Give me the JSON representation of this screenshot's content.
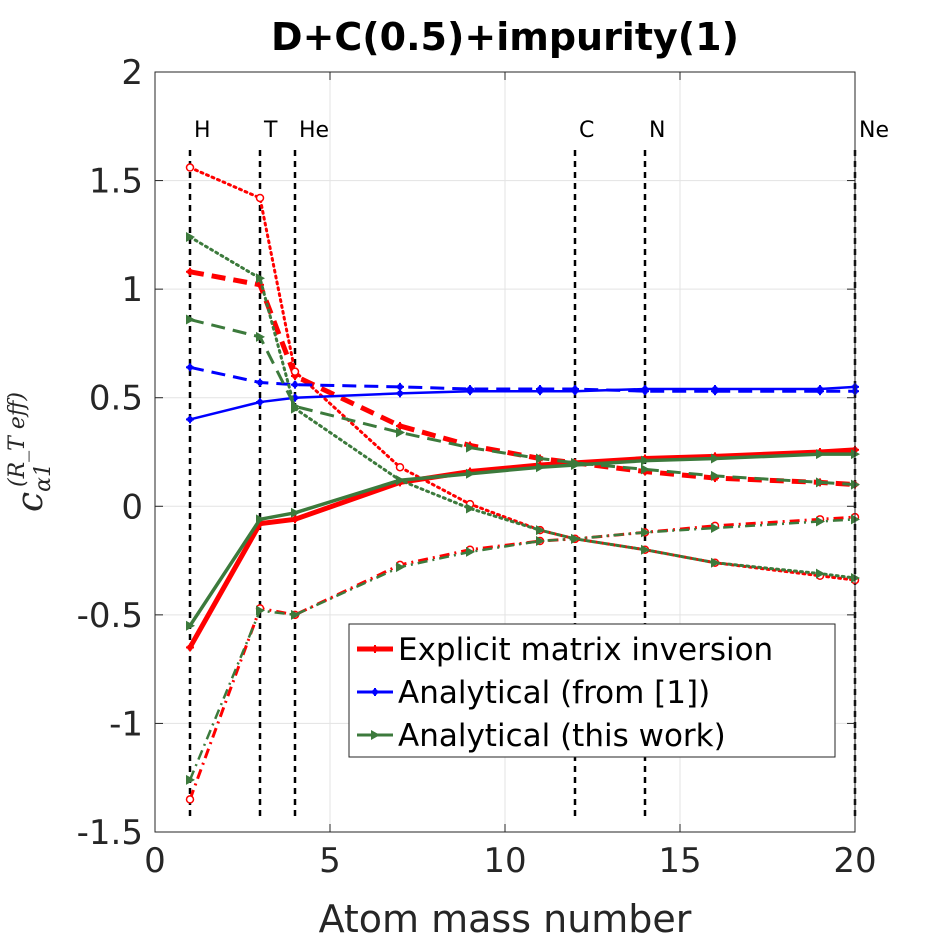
{
  "chart_data": {
    "type": "line",
    "title": "D+C(0.5)+impurity(1)",
    "xlabel": "Atom mass number",
    "ylabel": {
      "base": "c",
      "sub": "α1",
      "sup": "(R_T eff)"
    },
    "xlim": [
      0,
      20
    ],
    "ylim": [
      -1.5,
      2
    ],
    "xticks": [
      0,
      5,
      10,
      15,
      20
    ],
    "xtick_labels": [
      "0",
      "5",
      "10",
      "15",
      "20"
    ],
    "yticks": [
      -1.5,
      -1,
      -0.5,
      0,
      0.5,
      1,
      1.5,
      2
    ],
    "ytick_labels": [
      "-1.5",
      "-1",
      "-0.5",
      "0",
      "0.5",
      "1",
      "1.5",
      "2"
    ],
    "grid": true,
    "vlines": [
      {
        "x": 1,
        "label": "H"
      },
      {
        "x": 3,
        "label": "T"
      },
      {
        "x": 4,
        "label": "He"
      },
      {
        "x": 12,
        "label": "C"
      },
      {
        "x": 14,
        "label": "N"
      },
      {
        "x": 20,
        "label": "Ne"
      }
    ],
    "x": [
      1,
      3,
      4,
      7,
      9,
      11,
      12,
      14,
      16,
      19,
      20
    ],
    "series": [
      {
        "name": "Explicit matrix inversion (solid)",
        "color": "#ff0000",
        "style": "solid",
        "marker": "star",
        "values": [
          -0.65,
          -0.08,
          -0.06,
          0.11,
          0.16,
          0.19,
          0.2,
          0.22,
          0.23,
          0.25,
          0.26
        ]
      },
      {
        "name": "Explicit matrix inversion (dashed)",
        "color": "#ff0000",
        "style": "dashed",
        "marker": "star",
        "values": [
          1.08,
          1.02,
          0.6,
          0.37,
          0.28,
          0.22,
          0.2,
          0.16,
          0.13,
          0.11,
          0.1
        ]
      },
      {
        "name": "Explicit matrix inversion (dotted)",
        "color": "#ff0000",
        "style": "dotted",
        "marker": "circle",
        "values": [
          1.56,
          1.42,
          0.62,
          0.18,
          0.01,
          -0.11,
          -0.15,
          -0.2,
          -0.26,
          -0.32,
          -0.34
        ]
      },
      {
        "name": "Explicit matrix inversion (dash-dot)",
        "color": "#ff0000",
        "style": "dashdot",
        "marker": "circle",
        "values": [
          -1.35,
          -0.47,
          -0.5,
          -0.27,
          -0.2,
          -0.16,
          -0.15,
          -0.12,
          -0.09,
          -0.06,
          -0.05
        ]
      },
      {
        "name": "Analytical (from [1]) (solid)",
        "color": "#0000ff",
        "style": "solid",
        "marker": "star",
        "values": [
          0.4,
          0.48,
          0.5,
          0.52,
          0.53,
          0.53,
          0.53,
          0.54,
          0.54,
          0.54,
          0.55
        ]
      },
      {
        "name": "Analytical (from [1]) (dashed)",
        "color": "#0000ff",
        "style": "dashed",
        "marker": "star",
        "values": [
          0.64,
          0.57,
          0.56,
          0.55,
          0.54,
          0.54,
          0.54,
          0.53,
          0.53,
          0.53,
          0.53
        ]
      },
      {
        "name": "Analytical (this work) (solid)",
        "color": "#3c7a3c",
        "style": "solid",
        "marker": "triangle",
        "values": [
          -0.55,
          -0.06,
          -0.03,
          0.12,
          0.15,
          0.18,
          0.19,
          0.21,
          0.22,
          0.24,
          0.24
        ]
      },
      {
        "name": "Analytical (this work) (dashed)",
        "color": "#3c7a3c",
        "style": "dashed",
        "marker": "triangle",
        "values": [
          0.86,
          0.78,
          0.46,
          0.34,
          0.27,
          0.22,
          0.2,
          0.17,
          0.14,
          0.11,
          0.1
        ]
      },
      {
        "name": "Analytical (this work) (dotted)",
        "color": "#3c7a3c",
        "style": "dotted",
        "marker": "triangle",
        "values": [
          1.24,
          1.05,
          0.45,
          0.12,
          -0.01,
          -0.11,
          -0.15,
          -0.2,
          -0.26,
          -0.31,
          -0.33
        ]
      },
      {
        "name": "Analytical (this work) (dash-dot)",
        "color": "#3c7a3c",
        "style": "dashdot",
        "marker": "triangle",
        "values": [
          -1.26,
          -0.48,
          -0.5,
          -0.28,
          -0.21,
          -0.16,
          -0.15,
          -0.12,
          -0.1,
          -0.07,
          -0.06
        ]
      }
    ],
    "legend": {
      "position": "bottom-right",
      "entries": [
        {
          "label": "Explicit matrix inversion",
          "color": "#ff0000",
          "marker": "star"
        },
        {
          "label": "Analytical (from [1])",
          "color": "#0000ff",
          "marker": "star"
        },
        {
          "label": "Analytical (this work)",
          "color": "#3c7a3c",
          "marker": "triangle"
        }
      ]
    }
  }
}
